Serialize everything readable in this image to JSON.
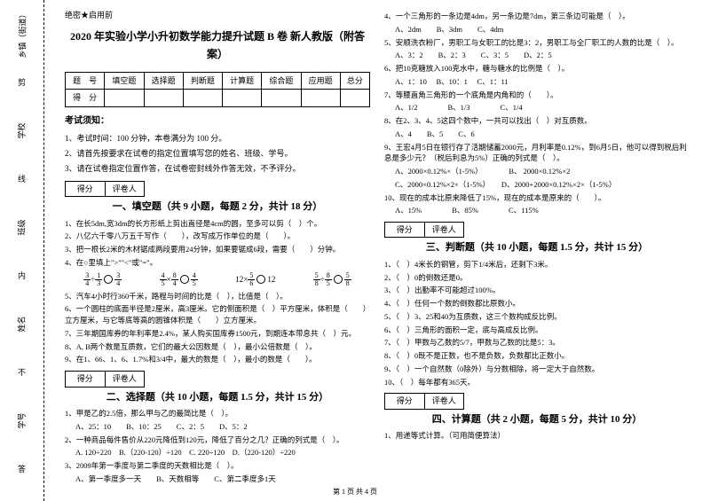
{
  "binding": {
    "field1": "乡镇（街道）",
    "field2": "学校",
    "field3": "班级",
    "field4": "姓名",
    "field5": "学号",
    "cut": "剪",
    "line": "线",
    "inner": "内",
    "no": "不",
    "answer": "答"
  },
  "header": {
    "confidential": "绝密★启用前",
    "title": "2020 年实验小学小升初数学能力提升试题 B 卷 新人教版（附答案）"
  },
  "scoreTable": {
    "r1c1": "题　号",
    "r1c2": "填空题",
    "r1c3": "选择题",
    "r1c4": "判断题",
    "r1c5": "计算题",
    "r1c6": "综合题",
    "r1c7": "应用题",
    "r1c8": "总分",
    "r2c1": "得　分"
  },
  "notice": {
    "title": "考试须知：",
    "n1": "1、考试时间：100 分钟，本卷满分为 100 分。",
    "n2": "2、请首先按要求在试卷的指定位置填写您的姓名、班级、学号。",
    "n3": "3、请在试卷指定位置作答，在试卷密封线外作答无效，不予评分。"
  },
  "sectionHeader": {
    "c1": "得分",
    "c2": "评卷人"
  },
  "s1": {
    "title": "一、填空题（共 9 小题，每题 2 分，共计 18 分）",
    "q1": "1、在长5dm,宽3dm的长方形纸上剪出直径是4cm的圆，至多可以剪（　）个。",
    "q2": "2、八亿六千零八万五千写作（　　），改写成万作单位的是（　　）。",
    "q3": "3、把一根长2米的木材锯成两段要用24分钟，如果要锯成6段，需要（　　）分钟。",
    "q4": "4、在○里填上\">\"\"<\"或\"=\"。",
    "f1a": "3",
    "f1b": "4",
    "f1c": "1",
    "f1d": "3",
    "f1op": "÷",
    "f2a": "4",
    "f2b": "5",
    "f2c": "8",
    "f2d": "4",
    "f2op": "×",
    "f3a": "12",
    "f3b": "5",
    "f3c": "6",
    "f4a": "5",
    "f4b": "8",
    "f4c": "8",
    "f4d": "5",
    "f4op": "÷",
    "q5": "5、汽车4小时行360千米，路程与时间的比是（　），比值是（　）。",
    "q6": "6、一个圆柱的底面半径是2厘米，高3厘米。它的侧面积是（　）平方厘米，体积是（　　）立方厘米，与它等底等高的圆锥体积是（　　）立方厘米。",
    "q7": "7、三年期国库券的年利率是2.4%，某人购买国库券1500元，到期连本带息共（　）元。",
    "q8": "8、A, B两个数是互质数，它们的最大公因数是（　），最小公倍数是（　）。",
    "q9": "9、在1、66、1、6、1.7%和3/4中，最大的数是（　），最小的数是（　　）。"
  },
  "s2": {
    "title": "二、选择题（共 10 小题，每题 1.5 分，共计 15 分）",
    "q1": "1、甲是乙的2.5倍，那么甲与乙的最简比是（　）。",
    "q1opts": "A、25：10　　B、10：25　　C、2：5　　D、5：2",
    "q2": "2、一种商品每件售价从220元降低到120元，降低了百分之几？正确的列式是（　）。",
    "q2opts": "A. 120÷220　B.（220-120）÷120　C. 220÷120　D.（220-120）÷220",
    "q3": "3、2009年第一季度与第二季度的天数相比是（　）。",
    "q3opts": "A、第一季度多一天　　B、天数相等　　C、第二季度多1天",
    "q4": "4、一个三角形的一条边是4dm，另一条边是7dm，第三条边可能是（　）。",
    "q4opts": "A、2dm　　B、3dm　　C、4dm",
    "q5": "5、安顺洗衣粉厂，男职工与女职工的比是3：2，男职工与全厂职工的人数的比是（　）。",
    "q5opts": "A、3：2　　B、2：3　　C、3：5　　D、2：5",
    "q6": "6、把10克糖放入100克水中，糖与糖水的比例是（　）。",
    "q6opts": "A、1：10　 B、10：1　 C、1：11",
    "q7": "7、等腰直角三角形的一个底角是内角和的（　　）。",
    "q7opts": "A、1/2　　　　B、1/3　　　　C、1/4",
    "q8": "8、在2、3、4、5这四个数中，一共可以找出（　）对互质数。",
    "q8opts": "A、4　　B、5　　C、6",
    "q9": "9、王宏4月5日在银行存了活期储蓄2000元，月利率是0.12%，到6月5日，他可以得到税后利息是多少元？（税后利息为5%）正确的列式是（　）。",
    "q9opts": "A、2000×0.12%×（1-5%）　　　　B、 2000×0.12%×2",
    "q9opts2": "C、2000×0.12%×2×（1-5%）　　D、2000+2000×0.12%×2×（1-5%）",
    "q10": "10、现在的成本比原来降低了15%，现在的成本是原来的（　　）。",
    "q10opts": "A、15%　　　　B、85%　　　　C、115%"
  },
  "s3": {
    "title": "三、判断题（共 10 小题，每题 1.5 分，共计 15 分）",
    "q1": "1、（　）4米长的钢管，剪下1/4米后，还剩下3米。",
    "q2": "2、（　）0的倒数还是0。",
    "q3": "3、（　）出勤率不可能超过100%。",
    "q4": "4、（　）任何一个数的倒数都比原数小。",
    "q5": "5、（　）3、25和40为互质数，这三个数构成反比例。",
    "q6": "6、（　）三角形的面积一定，底与高成反比例。",
    "q7": "7、（　）甲数与乙数的5/7，甲数与乙数的比是5：3。",
    "q8": "8、（　）0既不是正数，也不是负数，负数都比正数小。",
    "q9": "9、（　）一个自然数（0除外）与分数相除，将一定大于自然数。",
    "q10": "10、（　）每年都有365天。"
  },
  "s4": {
    "title": "四、计算题（共 2 小题，每题 5 分，共计 10 分）",
    "q1": "1、用递等式计算。（可用简便算法）"
  },
  "footer": "第 1 页 共 4 页"
}
